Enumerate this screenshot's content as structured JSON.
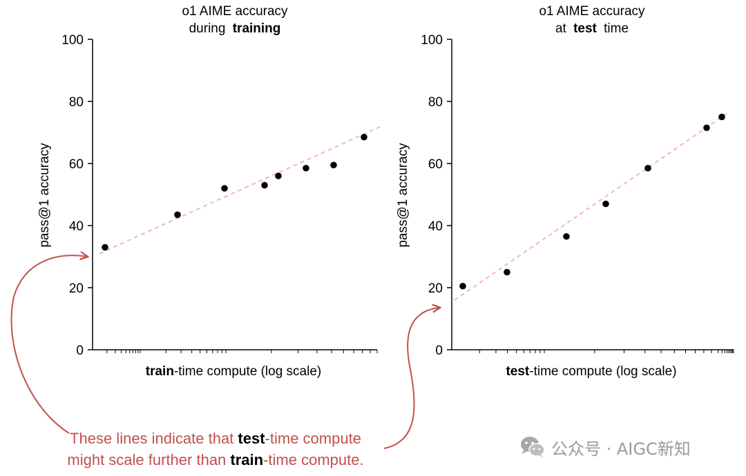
{
  "chart_data": [
    {
      "type": "scatter",
      "title_line1": "o1 AIME accuracy",
      "title_line2_pre": "during",
      "title_line2_bold": "training",
      "ylabel": "pass@1 accuracy",
      "xlabel_bold": "train",
      "xlabel_rest": "-time compute (log scale)",
      "x_scale": "log",
      "ylim": [
        0,
        100
      ],
      "yticks": [
        "0",
        "20",
        "40",
        "60",
        "80",
        "100"
      ],
      "grid": false,
      "series": [
        {
          "values": [
            33,
            43.5,
            52,
            53,
            56,
            58.5,
            59.5,
            68.5
          ]
        }
      ],
      "trend_line": {
        "style": "dashed",
        "color": "#f2b8b5",
        "y_start": 31,
        "y_end": 72
      }
    },
    {
      "type": "scatter",
      "title_line1": "o1 AIME accuracy",
      "title_line2_pre": "at",
      "title_line2_bold": "test",
      "title_line2_post": "time",
      "ylabel": "pass@1 accuracy",
      "xlabel_bold": "test",
      "xlabel_rest": "-time compute (log scale)",
      "x_scale": "log",
      "ylim": [
        0,
        100
      ],
      "yticks": [
        "0",
        "20",
        "40",
        "60",
        "80",
        "100"
      ],
      "grid": false,
      "series": [
        {
          "values": [
            20.5,
            25,
            36.5,
            47,
            58.5,
            71.5,
            75
          ]
        }
      ],
      "trend_line": {
        "style": "dashed",
        "color": "#f2b8b5",
        "y_start": 16,
        "y_end": 76
      }
    }
  ],
  "annotation": {
    "line1_pre": "These lines indicate that ",
    "line1_bold": "test",
    "line1_post": "-time compute",
    "line2_pre": "might scale further than ",
    "line2_bold": "train",
    "line2_post": "-time compute.",
    "color": "#c0504d"
  },
  "watermark": {
    "text": "公众号 · AIGC新知",
    "icon": "wechat-icon"
  }
}
